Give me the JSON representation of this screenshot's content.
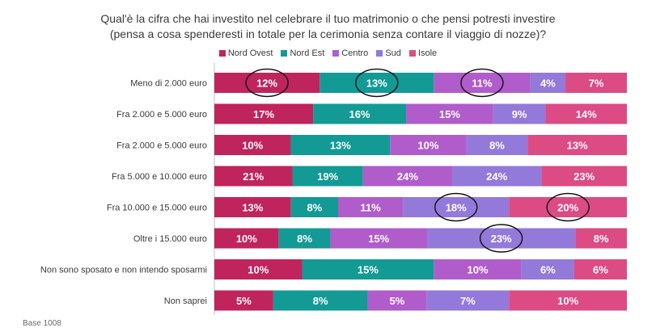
{
  "title_line1": "Qual'è la cifra che hai investito nel celebrare il tuo matrimonio o che pensi potresti investire",
  "title_line2": "(pensa a cosa spenderesti in totale per la cerimonia senza contare il viaggio di nozze)?",
  "base_note": "Base 1008",
  "chart_data": {
    "type": "bar",
    "orientation": "horizontal",
    "stacked": "percent",
    "categories": [
      "Meno di 2.000 euro",
      "Fra 2.000 e 5.000 euro",
      "Fra 2.000 e 5.000 euro",
      "Fra 5.000 e 10.000 euro",
      "Fra 10.000 e 15.000 euro",
      "Oltre i 15.000 euro",
      "Non sono sposato e non intendo sposarmi",
      "Non saprei"
    ],
    "series": [
      {
        "name": "Nord Ovest",
        "color": "#c0245c",
        "values": [
          12,
          17,
          10,
          21,
          13,
          10,
          10,
          5
        ],
        "labels": [
          "12%",
          "17%",
          "10%",
          "21%",
          "13%",
          "10%",
          "10%",
          "5%"
        ]
      },
      {
        "name": "Nord Est",
        "color": "#139a95",
        "values": [
          13,
          16,
          13,
          19,
          8,
          8,
          15,
          8
        ],
        "labels": [
          "13%",
          "16%",
          "13%",
          "19%",
          "8%",
          "8%",
          "15%",
          "8%"
        ]
      },
      {
        "name": "Centro",
        "color": "#b05ccb",
        "values": [
          11,
          15,
          10,
          24,
          11,
          15,
          10,
          5
        ],
        "labels": [
          "11%",
          "15%",
          "10%",
          "24%",
          "11%",
          "15%",
          "10%",
          "5%"
        ]
      },
      {
        "name": "Sud",
        "color": "#9379da",
        "values": [
          4,
          9,
          8,
          24,
          18,
          23,
          6,
          7
        ],
        "labels": [
          "4%",
          "9%",
          "8%",
          "24%",
          "18%",
          "23%",
          "6%",
          "7%"
        ]
      },
      {
        "name": "Isole",
        "color": "#dc4b84",
        "values": [
          7,
          14,
          13,
          23,
          20,
          8,
          6,
          10
        ],
        "labels": [
          "7%",
          "14%",
          "13%",
          "23%",
          "20%",
          "8%",
          "6%",
          "10%"
        ]
      }
    ],
    "legend_position": "top",
    "grid": false,
    "highlighted": [
      {
        "row": 0,
        "series": 0
      },
      {
        "row": 0,
        "series": 1
      },
      {
        "row": 0,
        "series": 2
      },
      {
        "row": 4,
        "series": 3
      },
      {
        "row": 4,
        "series": 4
      },
      {
        "row": 5,
        "series": 3
      }
    ]
  }
}
